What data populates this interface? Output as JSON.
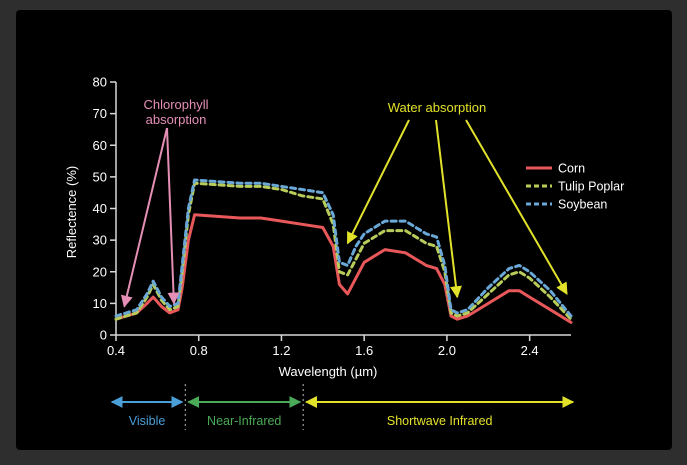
{
  "chart_data": {
    "type": "line",
    "xlabel": "Wavelength (µm)",
    "ylabel": "Reflectence (%)",
    "xlim": [
      0.4,
      2.6
    ],
    "ylim": [
      0,
      80
    ],
    "x_ticks": [
      "0.4",
      "0.8",
      "1.2",
      "1.6",
      "2.0",
      "2.4"
    ],
    "x_tick_values": [
      0.4,
      0.8,
      1.2,
      1.6,
      2.0,
      2.4
    ],
    "y_ticks": [
      "0",
      "10",
      "20",
      "30",
      "40",
      "50",
      "60",
      "70",
      "80"
    ],
    "y_tick_values": [
      0,
      10,
      20,
      30,
      40,
      50,
      60,
      70,
      80
    ],
    "grid": false,
    "legend_position": "right",
    "series": [
      {
        "name": "Corn",
        "color": "#e8585a",
        "style": "solid",
        "x": [
          0.4,
          0.45,
          0.5,
          0.55,
          0.58,
          0.62,
          0.66,
          0.7,
          0.72,
          0.75,
          0.78,
          1.0,
          1.1,
          1.2,
          1.3,
          1.4,
          1.45,
          1.48,
          1.52,
          1.56,
          1.6,
          1.7,
          1.8,
          1.9,
          1.95,
          1.99,
          2.02,
          2.05,
          2.1,
          2.2,
          2.3,
          2.35,
          2.4,
          2.5,
          2.6
        ],
        "y": [
          5,
          6,
          7,
          10,
          12,
          9,
          7,
          8,
          15,
          30,
          38,
          37,
          37,
          36,
          35,
          34,
          28,
          16,
          13,
          18,
          23,
          27,
          26,
          22,
          21,
          16,
          6,
          5,
          6,
          10,
          14,
          14,
          12,
          8,
          4
        ]
      },
      {
        "name": "Tulip Poplar",
        "color": "#b7cc5a",
        "style": "dashed",
        "x": [
          0.4,
          0.45,
          0.5,
          0.55,
          0.58,
          0.62,
          0.66,
          0.7,
          0.72,
          0.75,
          0.78,
          1.0,
          1.1,
          1.2,
          1.3,
          1.4,
          1.45,
          1.48,
          1.52,
          1.56,
          1.6,
          1.7,
          1.8,
          1.9,
          1.95,
          1.99,
          2.02,
          2.05,
          2.1,
          2.2,
          2.3,
          2.35,
          2.4,
          2.5,
          2.6
        ],
        "y": [
          5,
          6,
          7,
          12,
          16,
          11,
          8,
          9,
          20,
          38,
          48,
          47,
          47,
          46,
          44,
          43,
          35,
          20,
          19,
          24,
          29,
          33,
          33,
          29,
          28,
          20,
          7,
          6,
          7,
          13,
          19,
          20,
          18,
          12,
          5
        ]
      },
      {
        "name": "Soybean",
        "color": "#6aa8d8",
        "style": "dashed",
        "x": [
          0.4,
          0.45,
          0.5,
          0.55,
          0.58,
          0.62,
          0.66,
          0.7,
          0.72,
          0.75,
          0.78,
          1.0,
          1.1,
          1.2,
          1.3,
          1.4,
          1.45,
          1.48,
          1.52,
          1.56,
          1.6,
          1.7,
          1.8,
          1.9,
          1.95,
          1.99,
          2.02,
          2.05,
          2.1,
          2.2,
          2.3,
          2.35,
          2.4,
          2.5,
          2.6
        ],
        "y": [
          6,
          7,
          8,
          13,
          17,
          12,
          9,
          10,
          22,
          40,
          49,
          48,
          48,
          47,
          46,
          45,
          38,
          23,
          22,
          28,
          32,
          36,
          36,
          32,
          31,
          22,
          8,
          7,
          8,
          15,
          21,
          22,
          20,
          14,
          6
        ]
      }
    ],
    "annotations": [
      {
        "text_lines": [
          "Chlorophyll",
          "absorption"
        ],
        "color": "#e58fb6",
        "targets": [
          {
            "x": 0.44,
            "y": 9
          },
          {
            "x": 0.68,
            "y": 10
          }
        ]
      },
      {
        "text_lines": [
          "Water absorption"
        ],
        "color": "#e3e22a",
        "targets": [
          {
            "x": 1.52,
            "y": 29
          },
          {
            "x": 2.05,
            "y": 12
          },
          {
            "x": 2.58,
            "y": 13
          }
        ]
      }
    ],
    "spectral_regions": [
      {
        "label": "Visible",
        "color": "#4a9fd8",
        "x_start": 0.38,
        "x_end": 0.72
      },
      {
        "label": "Near-Infrared",
        "color": "#4aaa58",
        "x_start": 0.75,
        "x_end": 1.29
      },
      {
        "label": "Shortwave Infrared",
        "color": "#e3e22a",
        "x_start": 1.32,
        "x_end": 2.61
      }
    ],
    "region_divider_x": [
      0.735,
      1.305
    ]
  }
}
